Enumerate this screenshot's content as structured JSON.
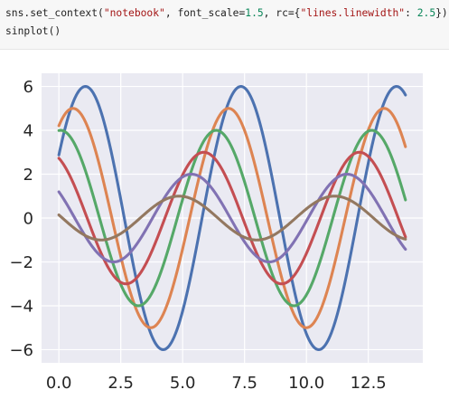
{
  "code_cell": {
    "line1": {
      "prefix": "sns.set_context(",
      "arg_context": "\"notebook\"",
      "mid1": ", font_scale=",
      "font_scale": "1.5",
      "mid2": ", rc={",
      "rc_key": "\"lines.linewidth\"",
      "mid3": ": ",
      "rc_value": "2.5",
      "suffix": "})"
    },
    "line2": "sinplot()"
  },
  "chart_data": {
    "type": "line",
    "title": "",
    "xlabel": "",
    "ylabel": "",
    "xlim": [
      -0.7,
      14.7
    ],
    "ylim": [
      -6.6,
      6.6
    ],
    "x_ticks": [
      0.0,
      2.5,
      5.0,
      7.5,
      10.0,
      12.5
    ],
    "x_tick_labels": [
      "0.0",
      "2.5",
      "5.0",
      "7.5",
      "10.0",
      "12.5"
    ],
    "y_ticks": [
      -6,
      -4,
      -2,
      0,
      2,
      4,
      6
    ],
    "y_tick_labels": [
      "−6",
      "−4",
      "−2",
      "0",
      "2",
      "4",
      "6"
    ],
    "grid": true,
    "legend": "none",
    "background": "#eaeaf2",
    "x_range": [
      0,
      14
    ],
    "function": "y = sin(x + 0.5*i) * (7 - i), for i = 1..6",
    "series": [
      {
        "amplitude": 6,
        "phase": 0.5,
        "color": "#4c72b0"
      },
      {
        "amplitude": 5,
        "phase": 1.0,
        "color": "#dd8452"
      },
      {
        "amplitude": 4,
        "phase": 1.5,
        "color": "#55a868"
      },
      {
        "amplitude": 3,
        "phase": 2.0,
        "color": "#c44e52"
      },
      {
        "amplitude": 2,
        "phase": 2.5,
        "color": "#8172b3"
      },
      {
        "amplitude": 1,
        "phase": 3.0,
        "color": "#937860"
      }
    ]
  }
}
